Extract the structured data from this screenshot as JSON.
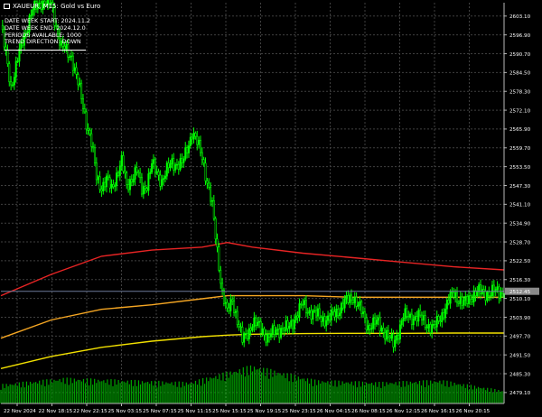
{
  "window": {
    "symbol_title": "XAUEUR, M15:  Gold vs Euro"
  },
  "info_panel": {
    "lines": [
      "DATE WEEK START: 2024.11.2",
      "DATE WEEK END: 2024.12.0",
      "PERIODS AVAILABLE: 1000",
      "TREND DIRECTION: DOWN"
    ]
  },
  "colors": {
    "background": "#000000",
    "grid": "#404040",
    "candles": "#00ff00",
    "ma_red": "#e82424",
    "ma_orange": "#f5a623",
    "ma_yellow": "#f2e000",
    "volume": "#00a800",
    "current_price_line": "#6c7a99",
    "current_price_box": "#8a8a8a"
  },
  "chart_data": {
    "type": "line",
    "price_axis": {
      "ticks": [
        2603.1,
        2596.9,
        2590.7,
        2584.5,
        2578.3,
        2572.1,
        2565.9,
        2559.7,
        2553.5,
        2547.3,
        2541.1,
        2534.9,
        2528.7,
        2522.5,
        2516.3,
        2510.1,
        2503.9,
        2497.7,
        2491.5,
        2485.3,
        2479.1
      ],
      "tick_labels": [
        "2603.10",
        "2596.90",
        "2590.70",
        "2584.50",
        "2578.30",
        "2572.10",
        "2565.90",
        "2559.70",
        "2553.50",
        "2547.30",
        "2541.10",
        "2534.90",
        "2528.70",
        "2522.50",
        "2516.30",
        "2510.10",
        "2503.90",
        "2497.70",
        "2491.50",
        "2485.30",
        "2479.10"
      ],
      "range": [
        2475.5,
        2607.5
      ]
    },
    "time_axis": {
      "labels": [
        "22 Nov 2024",
        "22 Nov 18:15",
        "22 Nov 22:15",
        "25 Nov 03:15",
        "25 Nov 07:15",
        "25 Nov 11:15",
        "25 Nov 15:15",
        "25 Nov 19:15",
        "25 Nov 23:15",
        "26 Nov 04:15",
        "26 Nov 08:15",
        "26 Nov 12:15",
        "26 Nov 16:15",
        "26 Nov 20:15"
      ]
    },
    "current_price": 2512.45,
    "current_price_label": "2512.45",
    "price_x": [
      0,
      0.02,
      0.04,
      0.06,
      0.08,
      0.1,
      0.12,
      0.14,
      0.16,
      0.18,
      0.19,
      0.2,
      0.21,
      0.22,
      0.23,
      0.24,
      0.25,
      0.26,
      0.27,
      0.28,
      0.29,
      0.3,
      0.32,
      0.34,
      0.36,
      0.38,
      0.4,
      0.42,
      0.44,
      0.45,
      0.46,
      0.48,
      0.5,
      0.52,
      0.53,
      0.55,
      0.57,
      0.6,
      0.62,
      0.65,
      0.68,
      0.7,
      0.73,
      0.75,
      0.78,
      0.8,
      0.83,
      0.86,
      0.88,
      0.9,
      0.92,
      0.94,
      0.97,
      1.0
    ],
    "price_close": [
      2600,
      2580,
      2593,
      2604,
      2608,
      2607,
      2593,
      2590,
      2576,
      2561,
      2550,
      2547,
      2549,
      2546,
      2551,
      2555,
      2547,
      2550,
      2552,
      2546,
      2548,
      2554,
      2549,
      2555,
      2554,
      2565,
      2557,
      2540,
      2512,
      2505,
      2510,
      2496,
      2502,
      2500,
      2497,
      2500,
      2500,
      2508,
      2505,
      2503,
      2508,
      2511,
      2501,
      2502,
      2495,
      2504,
      2504,
      2500,
      2506,
      2512,
      2508,
      2512,
      2512,
      2512.45
    ],
    "volume_x": [
      0,
      0.125,
      0.25,
      0.375,
      0.5,
      0.625,
      0.75,
      0.875,
      1.0
    ],
    "volume_level": [
      0.45,
      0.6,
      0.55,
      0.5,
      0.9,
      0.55,
      0.5,
      0.55,
      0.3
    ],
    "series": [
      {
        "color_key": "ma_red",
        "x": [
          0,
          0.1,
          0.2,
          0.3,
          0.4,
          0.45,
          0.5,
          0.6,
          0.7,
          0.8,
          0.9,
          1.0
        ],
        "y": [
          2511,
          2518,
          2524,
          2526,
          2527,
          2528.5,
          2527,
          2525,
          2523.5,
          2522,
          2520.5,
          2519.5
        ]
      },
      {
        "color_key": "ma_orange",
        "x": [
          0,
          0.1,
          0.2,
          0.3,
          0.4,
          0.45,
          0.5,
          0.6,
          0.7,
          0.8,
          0.9,
          1.0
        ],
        "y": [
          2497,
          2503,
          2506.5,
          2508,
          2510,
          2511,
          2511,
          2511,
          2510.5,
          2510.5,
          2510.5,
          2510.5
        ]
      },
      {
        "color_key": "ma_yellow",
        "x": [
          0,
          0.1,
          0.2,
          0.3,
          0.4,
          0.45,
          0.5,
          0.6,
          0.7,
          0.8,
          0.9,
          1.0
        ],
        "y": [
          2487,
          2491,
          2494,
          2496,
          2497.5,
          2498,
          2498.3,
          2498.5,
          2498.6,
          2498.6,
          2498.7,
          2498.7
        ]
      }
    ]
  }
}
